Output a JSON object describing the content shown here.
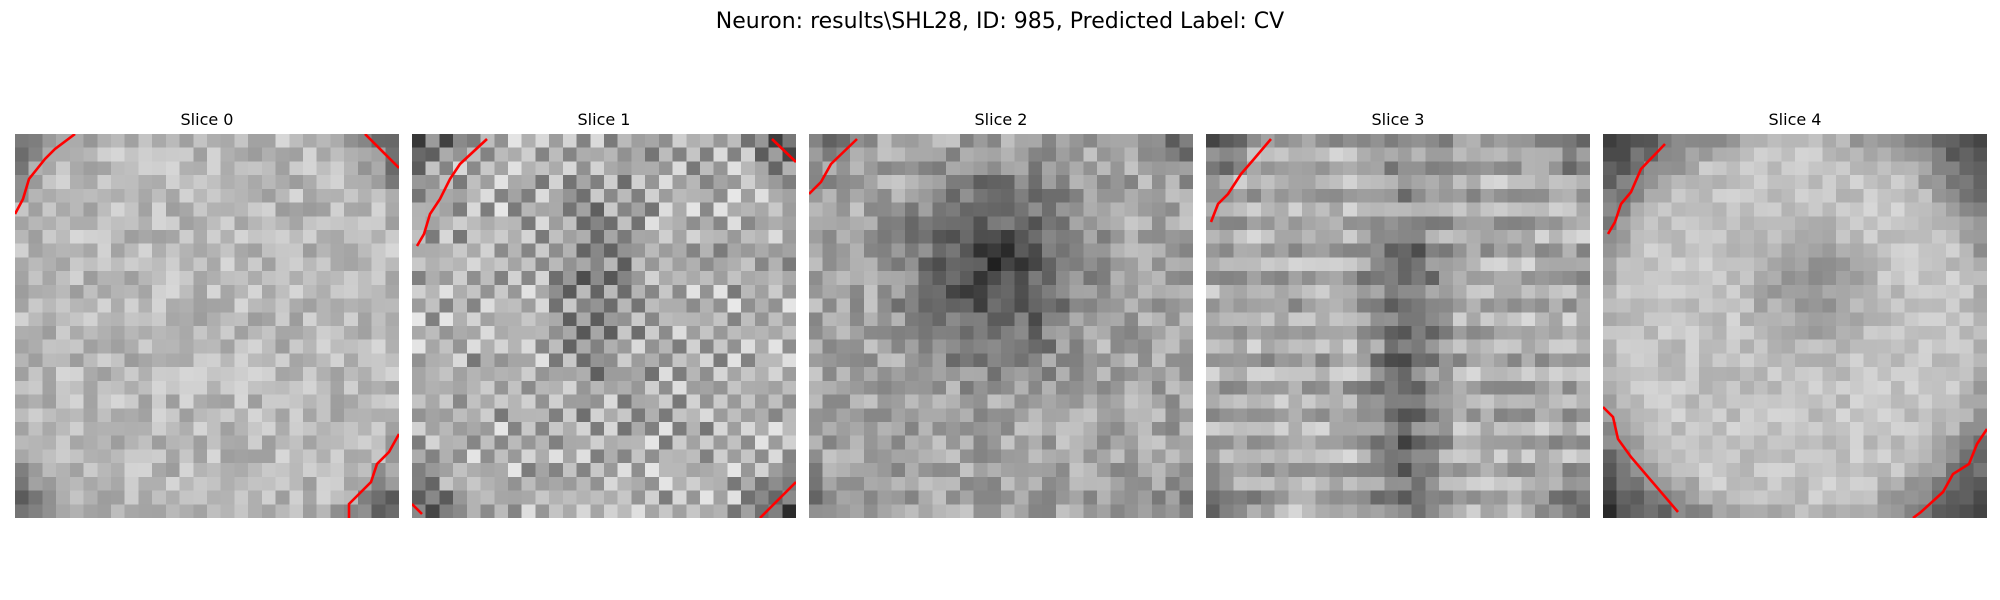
{
  "figure": {
    "title": "Neuron: results\\SHL28, ID: 985, Predicted Label: CV"
  },
  "slices": [
    {
      "title": "Slice 0",
      "pattern": "uniform-light"
    },
    {
      "title": "Slice 1",
      "pattern": "checkered-dark-center"
    },
    {
      "title": "Slice 2",
      "pattern": "dark-blob-center"
    },
    {
      "title": "Slice 3",
      "pattern": "horizontal-stripes-dark-column"
    },
    {
      "title": "Slice 4",
      "pattern": "ring-light"
    }
  ],
  "colors": {
    "contour": "#ff0000",
    "background": "#ffffff",
    "text": "#000000"
  }
}
